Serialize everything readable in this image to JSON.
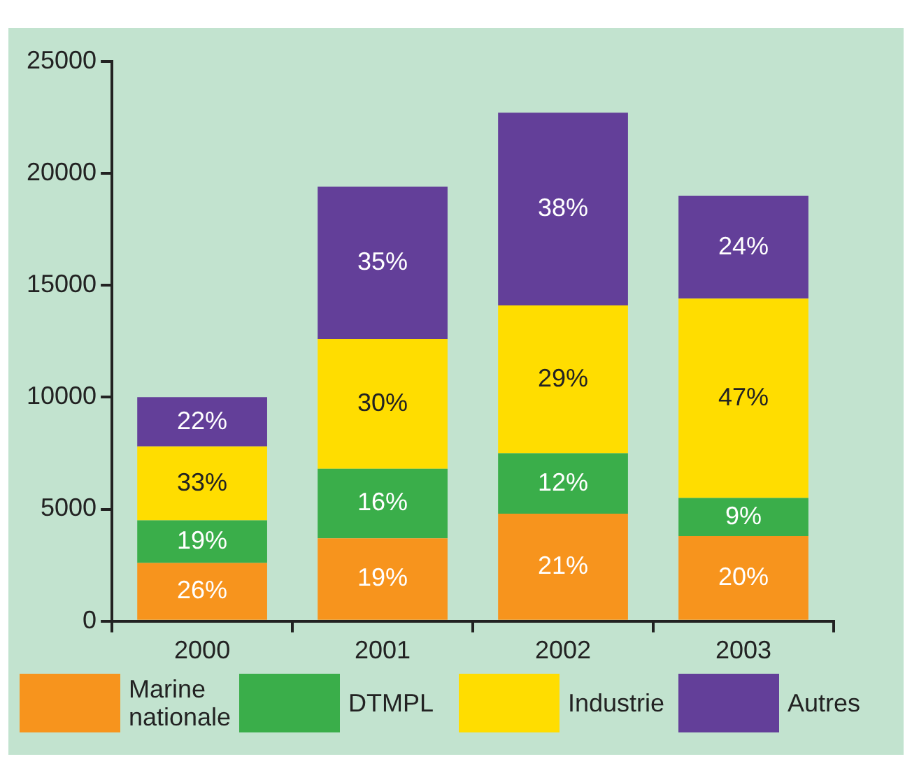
{
  "chart_data": {
    "type": "bar",
    "stacked": true,
    "categories": [
      "2000",
      "2001",
      "2002",
      "2003"
    ],
    "series": [
      {
        "name": "Marine nationale",
        "color": "#f7941d",
        "values": [
          2600,
          3700,
          4800,
          3800
        ]
      },
      {
        "name": "DTMPL",
        "color": "#3aae4a",
        "values": [
          1900,
          3100,
          2700,
          1700
        ]
      },
      {
        "name": "Industrie",
        "color": "#ffdd00",
        "values": [
          3300,
          5800,
          6600,
          8900
        ]
      },
      {
        "name": "Autres",
        "color": "#633f99",
        "values": [
          2200,
          6800,
          8600,
          4600
        ]
      }
    ],
    "annotations": [
      "26%",
      "19%",
      "33%",
      "22%",
      "19%",
      "16%",
      "30%",
      "35%",
      "21%",
      "12%",
      "29%",
      "38%",
      "20%",
      "9%",
      "47%",
      "24%"
    ],
    "ylim": [
      0,
      25000
    ],
    "yticks": [
      0,
      5000,
      10000,
      15000,
      20000,
      25000
    ],
    "grid": false,
    "legend": "bottom"
  }
}
